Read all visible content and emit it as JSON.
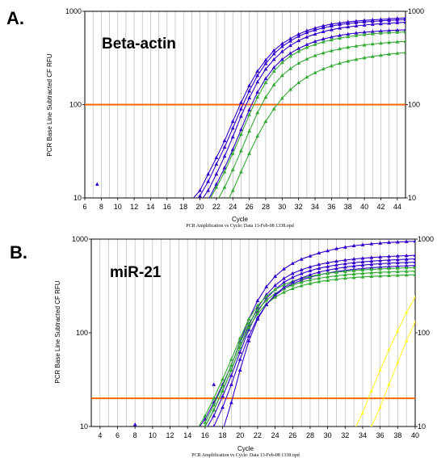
{
  "chart_data": [
    {
      "panel_label": "A.",
      "title": "Beta-actin",
      "type": "line",
      "log_y": true,
      "xlabel": "Cycle",
      "ylabel": "PCR Base Line Subtracted CF RFU",
      "footer": "PCR Amplification vs Cycle: Data 13-Feb-08 1338.opd",
      "xlim": [
        6,
        45
      ],
      "ylim": [
        10,
        1000
      ],
      "x_ticks": [
        6,
        8,
        10,
        12,
        14,
        16,
        18,
        20,
        22,
        24,
        26,
        28,
        30,
        32,
        34,
        36,
        38,
        40,
        42,
        44
      ],
      "y_ticks": [
        10,
        100,
        1000
      ],
      "grid": "vertical",
      "threshold": 100,
      "threshold_color": "#ff6600",
      "colors": {
        "blue": "#3300cc",
        "green": "#33aa33"
      },
      "x": [
        19,
        20,
        21,
        22,
        23,
        24,
        25,
        26,
        27,
        28,
        29,
        30,
        31,
        32,
        33,
        34,
        35,
        36,
        37,
        38,
        39,
        40,
        41,
        42,
        43,
        44,
        45
      ],
      "series": [
        {
          "color": "blue",
          "values": [
            9.5,
            12,
            18,
            27,
            41,
            66,
            105,
            160,
            228,
            300,
            380,
            450,
            510,
            570,
            620,
            660,
            700,
            730,
            750,
            770,
            785,
            800,
            810,
            820,
            830,
            840,
            850
          ]
        },
        {
          "color": "blue",
          "values": [
            8,
            10.5,
            15,
            23,
            35,
            56,
            90,
            140,
            205,
            275,
            350,
            420,
            480,
            540,
            590,
            630,
            665,
            695,
            720,
            740,
            755,
            770,
            780,
            790,
            800,
            808,
            815
          ]
        },
        {
          "color": "blue",
          "values": [
            null,
            9,
            12,
            18,
            28,
            45,
            75,
            118,
            175,
            240,
            305,
            370,
            430,
            485,
            530,
            570,
            605,
            635,
            660,
            680,
            698,
            712,
            725,
            735,
            745,
            755,
            762
          ]
        },
        {
          "color": "blue",
          "values": [
            null,
            null,
            9.5,
            14,
            21,
            33,
            54,
            88,
            136,
            190,
            250,
            305,
            355,
            400,
            440,
            475,
            505,
            530,
            552,
            570,
            585,
            597,
            607,
            615,
            622,
            628,
            633
          ]
        },
        {
          "color": "green",
          "values": [
            null,
            null,
            9,
            13,
            19,
            30,
            48,
            78,
            120,
            172,
            228,
            282,
            330,
            372,
            410,
            442,
            470,
            495,
            516,
            534,
            550,
            563,
            574,
            583,
            590,
            596,
            600
          ]
        },
        {
          "color": "green",
          "values": [
            null,
            null,
            null,
            9,
            13,
            20,
            32,
            52,
            82,
            120,
            163,
            205,
            243,
            278,
            308,
            335,
            358,
            378,
            396,
            411,
            424,
            436,
            446,
            455,
            463,
            470,
            476
          ]
        },
        {
          "color": "green",
          "values": [
            null,
            null,
            null,
            null,
            8,
            12,
            19,
            30,
            46,
            66,
            90,
            117,
            145,
            172,
            197,
            220,
            241,
            260,
            277,
            292,
            305,
            317,
            328,
            338,
            347,
            355,
            362
          ]
        }
      ],
      "outlier_points": [
        {
          "x": 7.5,
          "y": 14,
          "color": "blue"
        }
      ]
    },
    {
      "panel_label": "B.",
      "title": "miR-21",
      "type": "line",
      "log_y": true,
      "xlabel": "Cycle",
      "ylabel": "PCR Base Line Subtracted CF RFU",
      "footer": "PCR Amplification vs Cycle: Data 13-Feb-08 1338.opd",
      "xlim": [
        3,
        40
      ],
      "ylim": [
        10,
        1000
      ],
      "x_ticks": [
        4,
        6,
        8,
        10,
        12,
        14,
        16,
        18,
        20,
        22,
        24,
        26,
        28,
        30,
        32,
        34,
        36,
        38,
        40
      ],
      "y_ticks": [
        10,
        100,
        1000
      ],
      "grid": "vertical",
      "threshold": 20,
      "threshold_color": "#ff6600",
      "colors": {
        "blue": "#3300cc",
        "green": "#33aa33",
        "yellow": "#ffff33"
      },
      "x": [
        15,
        16,
        17,
        18,
        19,
        20,
        21,
        22,
        23,
        24,
        25,
        26,
        27,
        28,
        29,
        30,
        31,
        32,
        33,
        34,
        35,
        36,
        37,
        38,
        39,
        40
      ],
      "series": [
        {
          "color": "blue",
          "values": [
            9,
            12,
            18,
            28,
            45,
            80,
            140,
            220,
            310,
            400,
            480,
            550,
            610,
            660,
            710,
            750,
            790,
            820,
            850,
            870,
            890,
            905,
            920,
            930,
            940,
            950
          ]
        },
        {
          "color": "blue",
          "values": [
            null,
            10,
            15,
            24,
            40,
            70,
            120,
            185,
            255,
            320,
            380,
            430,
            470,
            505,
            535,
            560,
            580,
            597,
            612,
            625,
            636,
            645,
            653,
            660,
            666,
            671
          ]
        },
        {
          "color": "blue",
          "values": [
            null,
            9,
            13,
            21,
            35,
            62,
            108,
            168,
            232,
            290,
            345,
            390,
            428,
            460,
            487,
            510,
            530,
            546,
            560,
            572,
            582,
            591,
            598,
            604,
            610,
            615
          ]
        },
        {
          "color": "blue",
          "values": [
            null,
            null,
            10,
            16,
            28,
            52,
            92,
            145,
            200,
            250,
            295,
            333,
            365,
            392,
            415,
            434,
            450,
            464,
            476,
            486,
            495,
            502,
            508,
            514,
            519,
            523
          ]
        },
        {
          "color": "green",
          "values": [
            9,
            13,
            20,
            32,
            52,
            88,
            140,
            195,
            245,
            290,
            325,
            355,
            380,
            400,
            417,
            431,
            443,
            453,
            462,
            469,
            476,
            481,
            486,
            490,
            494,
            497
          ]
        },
        {
          "color": "green",
          "values": [
            null,
            11,
            17,
            27,
            45,
            78,
            126,
            176,
            222,
            262,
            296,
            324,
            347,
            366,
            382,
            395,
            406,
            416,
            424,
            431,
            437,
            442,
            446,
            450,
            453,
            456
          ]
        },
        {
          "color": "green",
          "values": [
            null,
            10,
            15,
            24,
            40,
            70,
            114,
            160,
            203,
            240,
            271,
            297,
            318,
            336,
            351,
            363,
            373,
            382,
            389,
            395,
            400,
            404,
            408,
            411,
            414,
            416
          ]
        },
        {
          "color": "blue",
          "values": [
            null,
            null,
            null,
            9,
            18,
            40,
            82,
            140,
            200,
            255,
            305,
            348,
            385,
            417,
            444,
            467,
            486,
            502,
            516,
            528,
            538,
            546,
            553,
            559,
            564,
            568
          ]
        }
      ],
      "yellow_series": [
        {
          "x": [
            33,
            34,
            35,
            36,
            37,
            38,
            39,
            40
          ],
          "values": [
            9,
            14,
            24,
            40,
            66,
            105,
            165,
            240
          ]
        },
        {
          "x": [
            35,
            36,
            37,
            38,
            39,
            40
          ],
          "values": [
            10,
            16,
            28,
            48,
            82,
            130
          ]
        }
      ],
      "outlier_points": [
        {
          "x": 8,
          "y": 10.5,
          "color": "blue"
        },
        {
          "x": 17,
          "y": 28,
          "color": "blue"
        }
      ]
    }
  ]
}
